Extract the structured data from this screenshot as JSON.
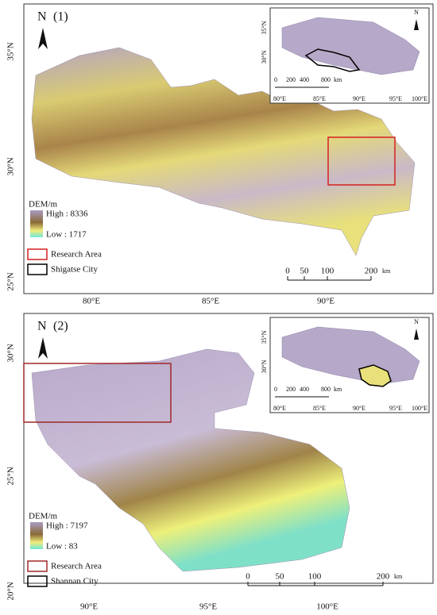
{
  "panels": [
    {
      "label": "(1)",
      "north": "N",
      "lat_labels": [
        "35°N",
        "30°N",
        "25°N"
      ],
      "lon_labels": [
        "80°E",
        "85°E",
        "90°E"
      ],
      "inset": {
        "north": "N",
        "lat_labels": [
          "35°N",
          "30°N"
        ],
        "lon_labels": [
          "80°E",
          "85°E",
          "90°E",
          "95°E",
          "100°E"
        ],
        "scale_labels": [
          "0",
          "200",
          "400",
          "800"
        ],
        "scale_unit": "km"
      },
      "legend": {
        "title": "DEM/m",
        "high": "High : 8336",
        "low": "Low : 1717",
        "research_area": "Research Area",
        "city": "Shigatse City"
      },
      "scale_labels": [
        "0",
        "50",
        "100",
        "200"
      ],
      "scale_unit": "km"
    },
    {
      "label": "(2)",
      "north": "N",
      "lat_labels": [
        "30°N",
        "25°N",
        "20°N"
      ],
      "lon_labels": [
        "90°E",
        "95°E",
        "100°E"
      ],
      "inset": {
        "north": "N",
        "lat_labels": [
          "35°N",
          "30°N"
        ],
        "lon_labels": [
          "80°E",
          "85°E",
          "90°E",
          "95°E",
          "100°E"
        ],
        "scale_labels": [
          "0",
          "200",
          "400",
          "800"
        ],
        "scale_unit": "km"
      },
      "legend": {
        "title": "DEM/m",
        "high": "High : 7197",
        "low": "Low : 83",
        "research_area": "Research Area",
        "city": "Shannan City"
      },
      "scale_labels": [
        "0",
        "50",
        "100",
        "200"
      ],
      "scale_unit": "km"
    }
  ]
}
